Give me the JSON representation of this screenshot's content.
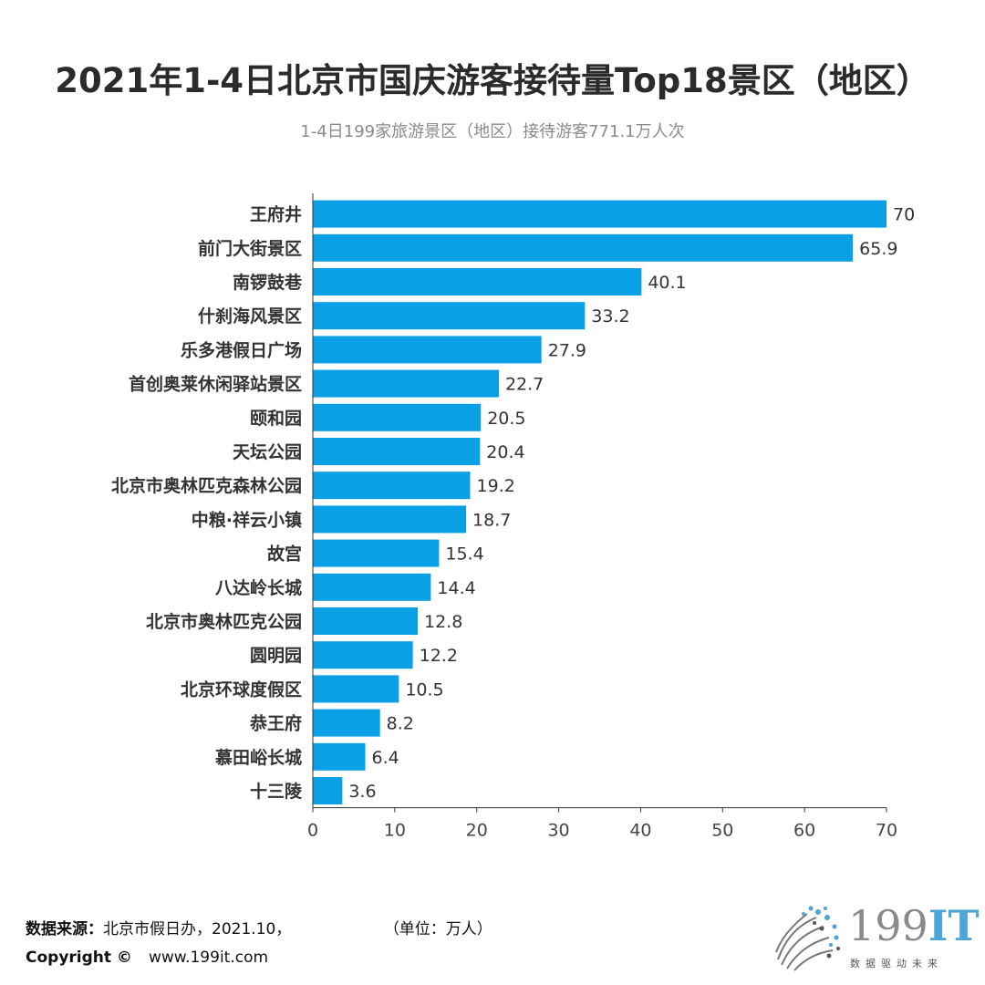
{
  "title": "2021年1-4日北京市国庆游客接待量Top18景区（地区）",
  "subtitle": "1-4日199家旅游景区（地区）接待游客771.1万人次",
  "chart_data": {
    "type": "bar",
    "orientation": "horizontal",
    "categories": [
      "王府井",
      "前门大街景区",
      "南锣鼓巷",
      "什刹海风景区",
      "乐多港假日广场",
      "首创奥莱休闲驿站景区",
      "颐和园",
      "天坛公园",
      "北京市奥林匹克森林公园",
      "中粮·祥云小镇",
      "故宫",
      "八达岭长城",
      "北京市奥林匹克公园",
      "圆明园",
      "北京环球度假区",
      "恭王府",
      "慕田峪长城",
      "十三陵"
    ],
    "values": [
      70,
      65.9,
      40.1,
      33.2,
      27.9,
      22.7,
      20.5,
      20.4,
      19.2,
      18.7,
      15.4,
      14.4,
      12.8,
      12.2,
      10.5,
      8.2,
      6.4,
      3.6
    ],
    "value_labels": [
      "70",
      "65.9",
      "40.1",
      "33.2",
      "27.9",
      "22.7",
      "20.5",
      "20.4",
      "19.2",
      "18.7",
      "15.4",
      "14.4",
      "12.8",
      "12.2",
      "10.5",
      "8.2",
      "6.4",
      "3.6"
    ],
    "xlim": [
      0,
      70
    ],
    "xticks": [
      "0",
      "10",
      "20",
      "30",
      "40",
      "50",
      "60",
      "70"
    ],
    "xlabel": "",
    "ylabel": "",
    "grid": false,
    "bar_color": "#0aa0e6"
  },
  "footer": {
    "source_label": "数据来源：",
    "source_text": "北京市假日办，2021.10，",
    "unit_text": "（单位：万人）",
    "copyright_label": "Copyright ©",
    "website": "www.199it.com"
  },
  "logo": {
    "name_main": "199",
    "name_accent": "IT",
    "tagline": "数据驱动未来",
    "accent_color": "#4aa6d6"
  }
}
